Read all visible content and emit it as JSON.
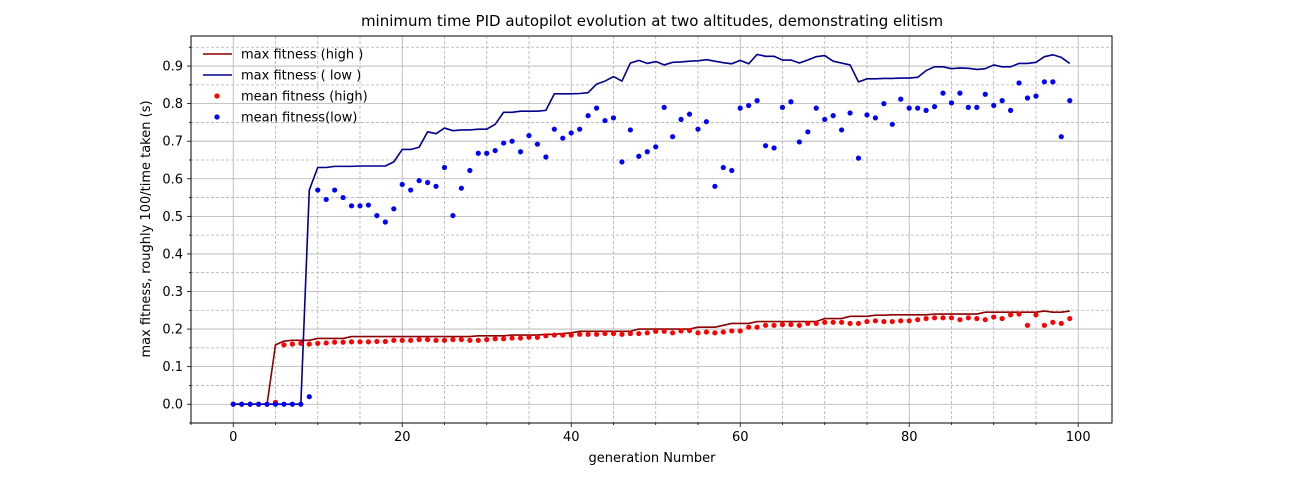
{
  "chart_data": {
    "type": "line",
    "title": "minimum time PID autopilot evolution at two altitudes, demonstrating elitism",
    "xlabel": "generation Number",
    "ylabel": "max fitness, roughly 100/time taken (s)",
    "xlim": [
      -5,
      104
    ],
    "ylim": [
      -0.05,
      0.98
    ],
    "xticks": [
      0,
      20,
      40,
      60,
      80,
      100
    ],
    "yticks": [
      0.0,
      0.1,
      0.2,
      0.3,
      0.4,
      0.5,
      0.6,
      0.7,
      0.8,
      0.9
    ],
    "grid": true,
    "minor_grid": true,
    "legend_position": "top-left",
    "x": [
      0,
      1,
      2,
      3,
      4,
      5,
      6,
      7,
      8,
      9,
      10,
      11,
      12,
      13,
      14,
      15,
      16,
      17,
      18,
      19,
      20,
      21,
      22,
      23,
      24,
      25,
      26,
      27,
      28,
      29,
      30,
      31,
      32,
      33,
      34,
      35,
      36,
      37,
      38,
      39,
      40,
      41,
      42,
      43,
      44,
      45,
      46,
      47,
      48,
      49,
      50,
      51,
      52,
      53,
      54,
      55,
      56,
      57,
      58,
      59,
      60,
      61,
      62,
      63,
      64,
      65,
      66,
      67,
      68,
      69,
      70,
      71,
      72,
      73,
      74,
      75,
      76,
      77,
      78,
      79,
      80,
      81,
      82,
      83,
      84,
      85,
      86,
      87,
      88,
      89,
      90,
      91,
      92,
      93,
      94,
      95,
      96,
      97,
      98,
      99
    ],
    "series": [
      {
        "name": "max fitness (high )",
        "kind": "line",
        "color": "#8b0000",
        "values": [
          0,
          0,
          0,
          0,
          0,
          0.158,
          0.168,
          0.17,
          0.17,
          0.17,
          0.175,
          0.175,
          0.175,
          0.175,
          0.18,
          0.18,
          0.18,
          0.18,
          0.18,
          0.18,
          0.18,
          0.18,
          0.18,
          0.18,
          0.18,
          0.18,
          0.18,
          0.18,
          0.18,
          0.182,
          0.182,
          0.182,
          0.182,
          0.184,
          0.184,
          0.184,
          0.184,
          0.186,
          0.186,
          0.188,
          0.19,
          0.194,
          0.194,
          0.194,
          0.194,
          0.194,
          0.194,
          0.194,
          0.2,
          0.2,
          0.2,
          0.2,
          0.2,
          0.2,
          0.2,
          0.205,
          0.205,
          0.205,
          0.21,
          0.215,
          0.215,
          0.215,
          0.22,
          0.22,
          0.22,
          0.22,
          0.22,
          0.22,
          0.22,
          0.22,
          0.228,
          0.228,
          0.228,
          0.234,
          0.234,
          0.234,
          0.237,
          0.237,
          0.238,
          0.238,
          0.238,
          0.238,
          0.238,
          0.24,
          0.24,
          0.24,
          0.24,
          0.24,
          0.24,
          0.245,
          0.245,
          0.245,
          0.245,
          0.245,
          0.245,
          0.245,
          0.248,
          0.245,
          0.245,
          0.248
        ]
      },
      {
        "name": "max fitness ( low )",
        "kind": "line",
        "color": "#00008b",
        "values": [
          0,
          0,
          0,
          0,
          0,
          0,
          0,
          0,
          0,
          0.57,
          0.63,
          0.63,
          0.633,
          0.633,
          0.633,
          0.634,
          0.634,
          0.634,
          0.634,
          0.645,
          0.678,
          0.678,
          0.684,
          0.725,
          0.72,
          0.735,
          0.728,
          0.73,
          0.73,
          0.732,
          0.732,
          0.745,
          0.777,
          0.777,
          0.78,
          0.78,
          0.78,
          0.782,
          0.826,
          0.826,
          0.826,
          0.827,
          0.829,
          0.852,
          0.86,
          0.872,
          0.86,
          0.908,
          0.915,
          0.907,
          0.912,
          0.903,
          0.91,
          0.911,
          0.913,
          0.914,
          0.917,
          0.913,
          0.909,
          0.906,
          0.915,
          0.906,
          0.931,
          0.926,
          0.926,
          0.916,
          0.916,
          0.908,
          0.916,
          0.925,
          0.928,
          0.913,
          0.908,
          0.903,
          0.858,
          0.866,
          0.866,
          0.867,
          0.867,
          0.868,
          0.868,
          0.87,
          0.888,
          0.898,
          0.898,
          0.893,
          0.895,
          0.894,
          0.891,
          0.893,
          0.903,
          0.898,
          0.898,
          0.907,
          0.907,
          0.91,
          0.925,
          0.93,
          0.923,
          0.907
        ]
      },
      {
        "name": "mean fitness (high)",
        "kind": "scatter",
        "color": "#ff0000",
        "values": [
          0,
          0,
          0,
          0,
          0,
          0.005,
          0.158,
          0.16,
          0.162,
          0.16,
          0.162,
          0.163,
          0.165,
          0.165,
          0.166,
          0.166,
          0.166,
          0.167,
          0.167,
          0.17,
          0.17,
          0.17,
          0.172,
          0.172,
          0.17,
          0.17,
          0.172,
          0.172,
          0.17,
          0.17,
          0.172,
          0.174,
          0.174,
          0.176,
          0.176,
          0.178,
          0.178,
          0.182,
          0.184,
          0.184,
          0.184,
          0.186,
          0.186,
          0.186,
          0.188,
          0.188,
          0.186,
          0.188,
          0.188,
          0.19,
          0.194,
          0.194,
          0.19,
          0.195,
          0.196,
          0.19,
          0.192,
          0.19,
          0.192,
          0.195,
          0.195,
          0.205,
          0.205,
          0.21,
          0.21,
          0.212,
          0.212,
          0.21,
          0.215,
          0.215,
          0.218,
          0.218,
          0.218,
          0.215,
          0.215,
          0.22,
          0.222,
          0.22,
          0.22,
          0.222,
          0.222,
          0.225,
          0.228,
          0.23,
          0.23,
          0.23,
          0.225,
          0.23,
          0.228,
          0.225,
          0.232,
          0.228,
          0.238,
          0.24,
          0.21,
          0.238,
          0.21,
          0.218,
          0.215,
          0.228
        ]
      },
      {
        "name": "mean fitness(low)",
        "kind": "scatter",
        "color": "#0000ff",
        "values": [
          0,
          0,
          0,
          0,
          0,
          0,
          0,
          0,
          0,
          0.02,
          0.57,
          0.545,
          0.57,
          0.55,
          0.528,
          0.528,
          0.53,
          0.502,
          0.485,
          0.52,
          0.585,
          0.57,
          0.595,
          0.59,
          0.58,
          0.63,
          0.502,
          0.575,
          0.622,
          0.668,
          0.668,
          0.675,
          0.695,
          0.7,
          0.672,
          0.715,
          0.692,
          0.658,
          0.732,
          0.708,
          0.722,
          0.732,
          0.768,
          0.788,
          0.755,
          0.762,
          0.645,
          0.73,
          0.66,
          0.672,
          0.685,
          0.79,
          0.712,
          0.758,
          0.772,
          0.732,
          0.752,
          0.58,
          0.63,
          0.622,
          0.788,
          0.795,
          0.808,
          0.688,
          0.682,
          0.79,
          0.805,
          0.698,
          0.725,
          0.788,
          0.758,
          0.768,
          0.73,
          0.775,
          0.655,
          0.77,
          0.762,
          0.8,
          0.745,
          0.812,
          0.788,
          0.788,
          0.782,
          0.792,
          0.828,
          0.802,
          0.828,
          0.79,
          0.79,
          0.825,
          0.795,
          0.808,
          0.782,
          0.855,
          0.815,
          0.82,
          0.858,
          0.858,
          0.712,
          0.808
        ]
      }
    ]
  }
}
